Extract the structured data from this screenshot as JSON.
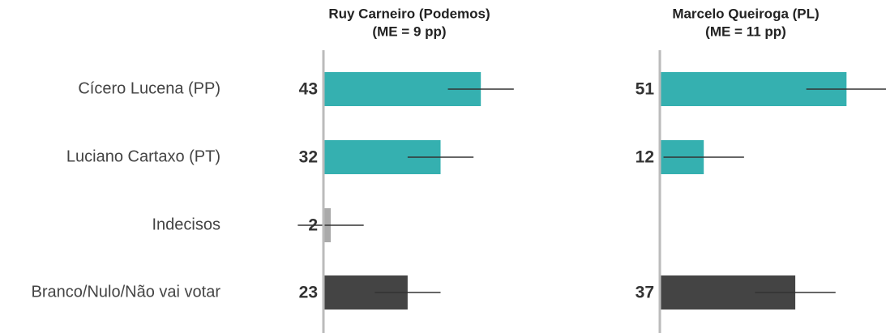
{
  "chart_data": [
    {
      "type": "bar",
      "orientation": "horizontal",
      "title": "Ruy Carneiro (Podemos)",
      "subtitle": "(ME = 9 pp)",
      "categories": [
        "Cícero Lucena (PP)",
        "Luciano Cartaxo (PT)",
        "Indecisos",
        "Branco/Nulo/Não vai votar"
      ],
      "values": [
        43,
        32,
        2,
        23
      ],
      "errors": [
        9,
        9,
        9,
        9
      ],
      "colors": [
        "#35b0b0",
        "#35b0b0",
        "#aaaaaa",
        "#444444"
      ],
      "xlim": [
        0,
        62
      ]
    },
    {
      "type": "bar",
      "orientation": "horizontal",
      "title": "Marcelo Queiroga (PL)",
      "subtitle": "(ME = 11 pp)",
      "values": [
        51,
        12,
        null,
        37
      ],
      "errors": [
        11,
        11,
        null,
        11
      ],
      "colors": [
        "#35b0b0",
        "#35b0b0",
        "#aaaaaa",
        "#444444"
      ],
      "xlim": [
        0,
        62
      ]
    }
  ]
}
